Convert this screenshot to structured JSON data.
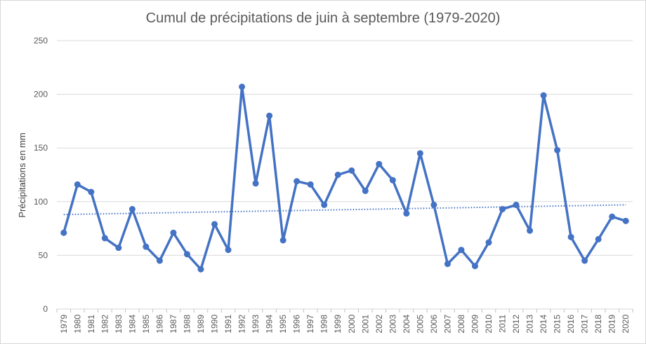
{
  "chart_data": {
    "type": "line",
    "title": "Cumul de précipitations de juin à septembre (1979-2020)",
    "xlabel": "",
    "ylabel": "Précipitations en mm",
    "ylim": [
      0,
      250
    ],
    "yticks": [
      0,
      50,
      100,
      150,
      200,
      250
    ],
    "grid": true,
    "categories": [
      "1979",
      "1980",
      "1981",
      "1982",
      "1983",
      "1984",
      "1985",
      "1986",
      "1987",
      "1988",
      "1989",
      "1990",
      "1991",
      "1992",
      "1993",
      "1994",
      "1995",
      "1996",
      "1997",
      "1998",
      "1999",
      "2000",
      "2001",
      "2002",
      "2003",
      "2004",
      "2005",
      "2006",
      "2007",
      "2008",
      "2009",
      "2010",
      "2011",
      "2012",
      "2013",
      "2014",
      "2015",
      "2016",
      "2017",
      "2018",
      "2019",
      "2020"
    ],
    "series": [
      {
        "color": "#4472c4",
        "values": [
          71,
          116,
          109,
          66,
          57,
          93,
          58,
          45,
          71,
          51,
          37,
          79,
          55,
          207,
          117,
          180,
          64,
          119,
          116,
          97,
          125,
          129,
          110,
          135,
          120,
          89,
          145,
          97,
          42,
          55,
          40,
          62,
          93,
          97,
          73,
          199,
          148,
          67,
          45,
          65,
          86,
          82
        ]
      }
    ],
    "trendline": {
      "style": "dotted",
      "color": "#4472c4",
      "start": 88,
      "end": 97
    }
  }
}
